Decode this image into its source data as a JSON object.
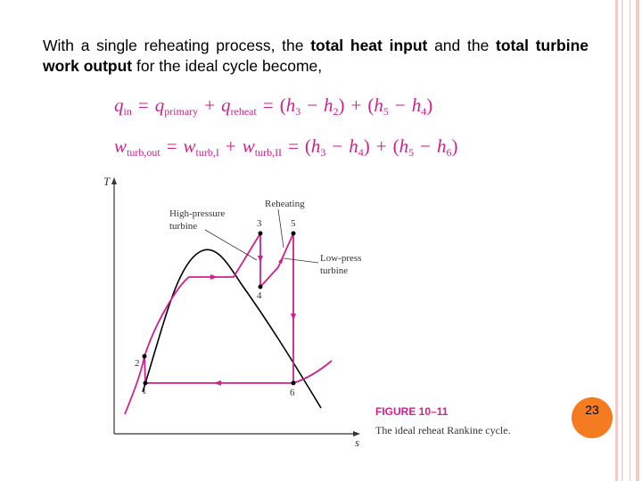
{
  "slide": {
    "paragraph": [
      "With a single reheating process, the ",
      "total heat input",
      " and the ",
      "total turbine work output",
      " for the ideal cycle become,"
    ],
    "equations": [
      [
        "q",
        "in",
        "=",
        "q",
        "primary",
        "+",
        "q",
        "reheat",
        "=",
        "(",
        "h",
        "3",
        "−",
        "h",
        "2",
        ")",
        "+",
        "(",
        "h",
        "5",
        "−",
        "h",
        "4",
        ")"
      ],
      [
        "w",
        "turb,out",
        "=",
        "w",
        "turb,I",
        "+",
        "w",
        "turb,II",
        "=",
        "(",
        "h",
        "3",
        "−",
        "h",
        "4",
        ")",
        "+",
        "(",
        "h",
        "5",
        "−",
        "h",
        "6",
        ")"
      ]
    ],
    "figure": {
      "y_axis": "T",
      "x_axis": "s",
      "labels": [
        "High-pressure",
        "turbine",
        "Reheating",
        "Low-press",
        "turbine"
      ],
      "points": [
        "1",
        "2",
        "3",
        "4",
        "5",
        "6"
      ],
      "caption_title": "FIGURE 10–11",
      "caption": "The ideal reheat Rankine cycle."
    },
    "page_number": "23"
  }
}
